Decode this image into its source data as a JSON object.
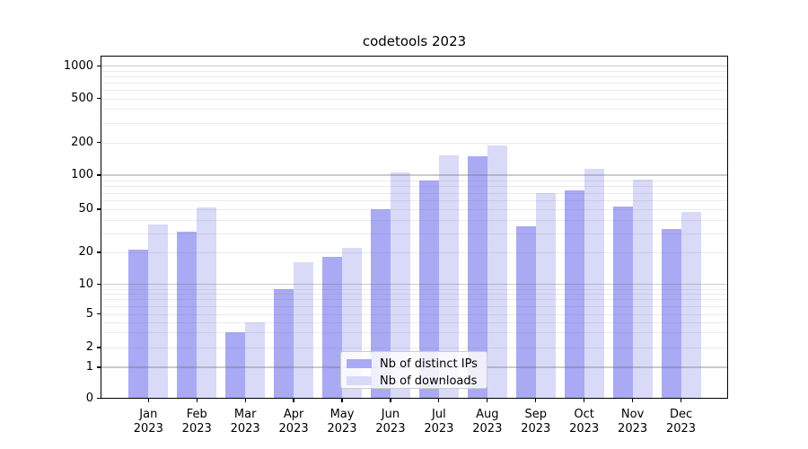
{
  "title": "codetools 2023",
  "chart_data": {
    "type": "bar",
    "title": "codetools 2023",
    "categories": [
      "Jan",
      "Feb",
      "Mar",
      "Apr",
      "May",
      "Jun",
      "Jul",
      "Aug",
      "Sep",
      "Oct",
      "Nov",
      "Dec"
    ],
    "category_year": "2023",
    "series": [
      {
        "name": "Nb of distinct IPs",
        "color": "#a9a9f4",
        "values": [
          21,
          31,
          3,
          9,
          18,
          50,
          90,
          148,
          35,
          74,
          53,
          33
        ]
      },
      {
        "name": "Nb of downloads",
        "color": "#d9d9f8",
        "values": [
          36,
          52,
          4,
          16,
          22,
          105,
          152,
          188,
          70,
          115,
          92,
          47
        ]
      }
    ],
    "xlabel": "",
    "ylabel": "",
    "y_ticks": [
      0,
      1,
      2,
      5,
      10,
      20,
      50,
      100,
      200,
      500,
      1000
    ],
    "yscale": "log-above-1-linear-below-1",
    "ylim": [
      0,
      1300
    ],
    "grid": "horizontal, major and minor",
    "legend_position": "lower center inside plot",
    "axis_color": "#000000",
    "background_color": "#ffffff"
  }
}
